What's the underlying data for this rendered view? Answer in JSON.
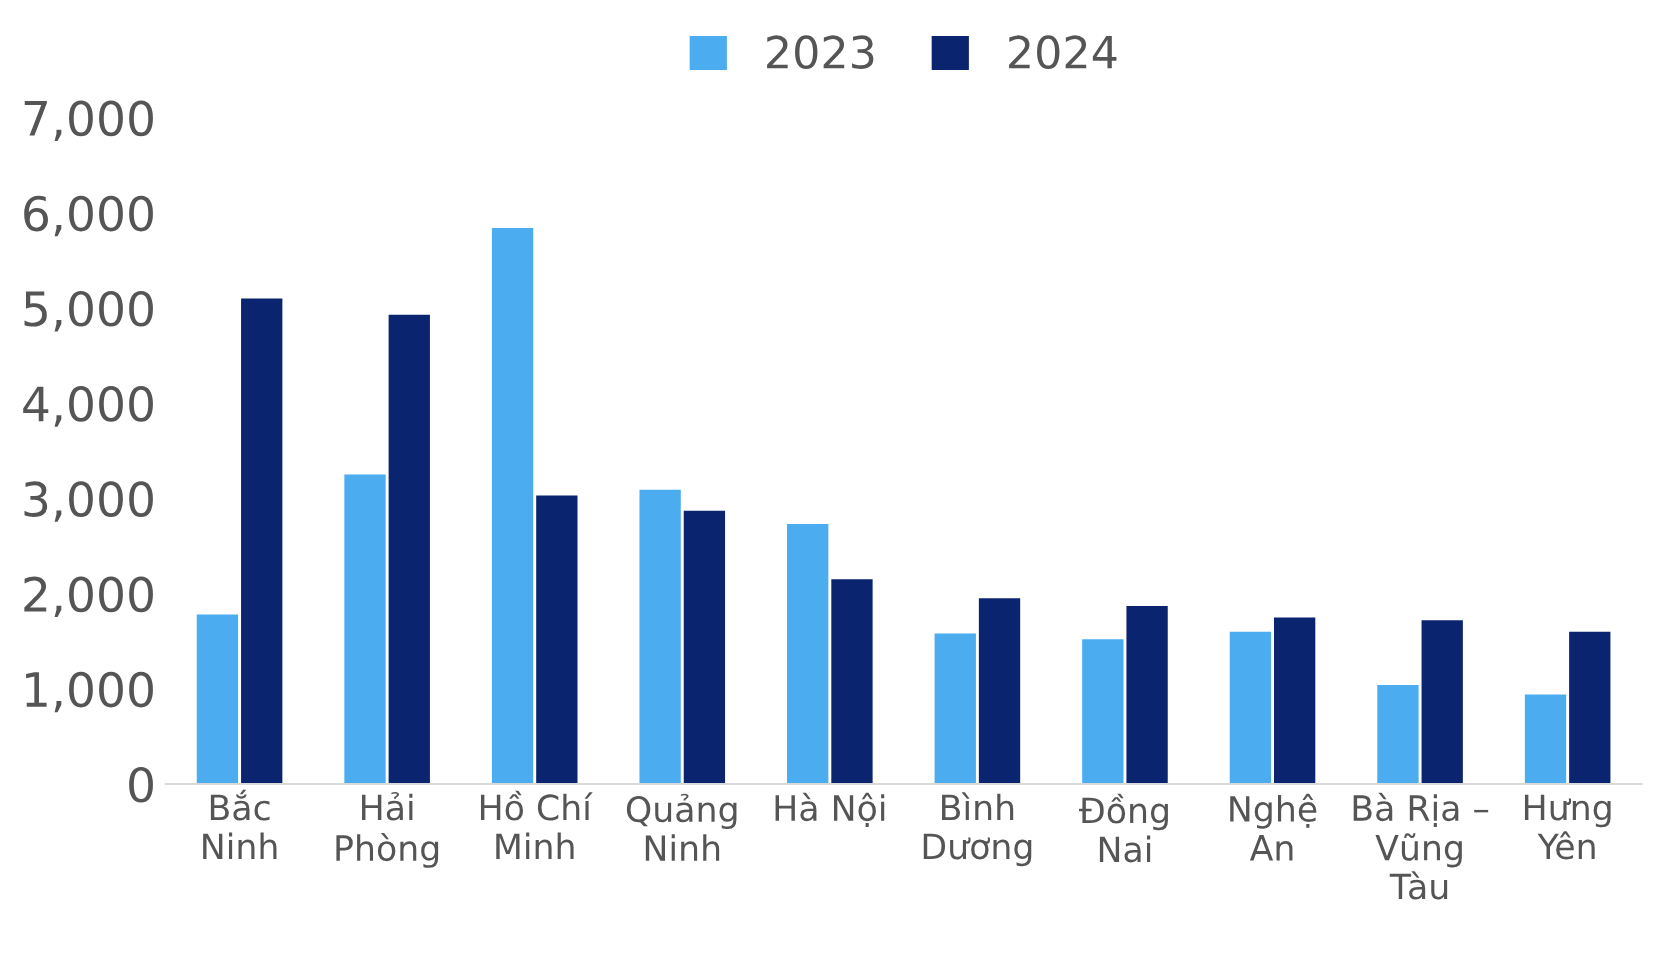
{
  "chart_data": {
    "type": "bar",
    "categories": [
      "Bắc\nNinh",
      "Hải\nPhòng",
      "Hồ Chí\nMinh",
      "Quảng\nNinh",
      "Hà Nội",
      "Bình\nDương",
      "Đồng\nNai",
      "Nghệ\nAn",
      "Bà Rịa –\nVũng\nTàu",
      "Hưng\nYên"
    ],
    "series": [
      {
        "name": "2023",
        "color": "#4bacf0",
        "values": [
          1780,
          3250,
          5840,
          3090,
          2730,
          1580,
          1520,
          1600,
          1040,
          940
        ]
      },
      {
        "name": "2024",
        "color": "#0b2470",
        "values": [
          5100,
          4930,
          3030,
          2870,
          2150,
          1950,
          1870,
          1750,
          1720,
          1600
        ]
      }
    ],
    "ylim": [
      0,
      7000
    ],
    "yticks": [
      {
        "value": 0,
        "label": "0"
      },
      {
        "value": 1000,
        "label": "1,000"
      },
      {
        "value": 2000,
        "label": "2,000"
      },
      {
        "value": 3000,
        "label": "3,000"
      },
      {
        "value": 4000,
        "label": "4,000"
      },
      {
        "value": 5000,
        "label": "5,000"
      },
      {
        "value": 6000,
        "label": "6,000"
      },
      {
        "value": 7000,
        "label": "7,000"
      }
    ],
    "grid": false,
    "legend": "top"
  }
}
